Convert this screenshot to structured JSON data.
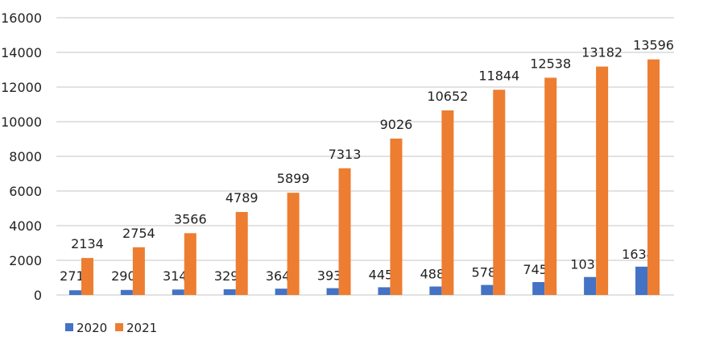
{
  "chart_data": {
    "type": "bar",
    "title": "",
    "xlabel": "",
    "ylabel": "",
    "ylim": [
      0,
      16000
    ],
    "yticks": [
      0,
      2000,
      4000,
      6000,
      8000,
      10000,
      12000,
      14000,
      16000
    ],
    "grid": true,
    "legend": "bottom-left",
    "categories": [
      "",
      "",
      "",
      "",
      "",
      "",
      "",
      "",
      "",
      "",
      "",
      ""
    ],
    "series": [
      {
        "name": "2020",
        "color": "#4472C4",
        "values": [
          271,
          290,
          314,
          329,
          364,
          393,
          445,
          488,
          578,
          745,
          1037,
          1634
        ]
      },
      {
        "name": "2021",
        "color": "#ED7D31",
        "values": [
          2134,
          2754,
          3566,
          4789,
          5899,
          7313,
          9026,
          10652,
          11844,
          12538,
          13182,
          13596
        ]
      }
    ]
  }
}
